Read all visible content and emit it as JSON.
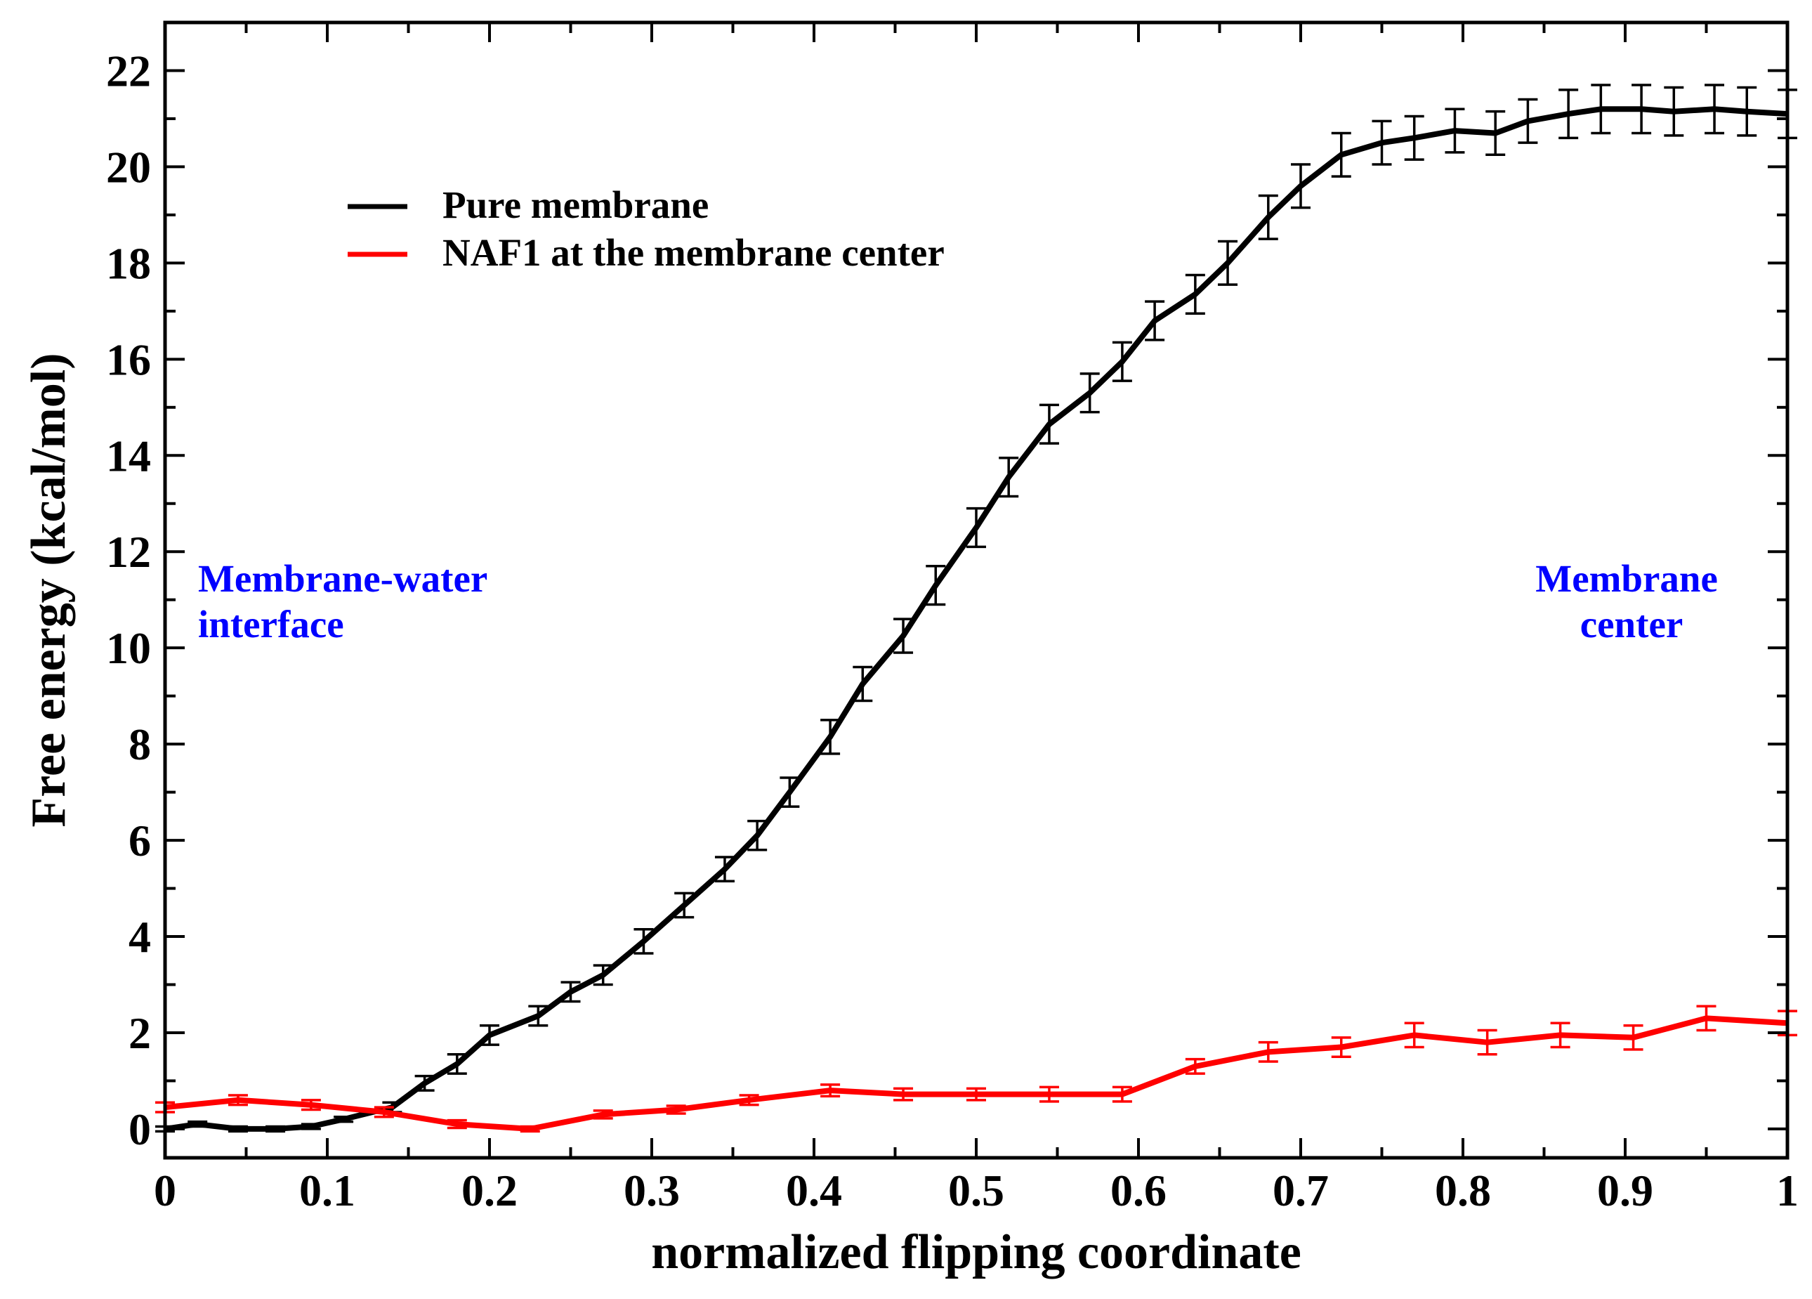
{
  "chart_data": {
    "type": "line",
    "title": "",
    "xlabel": "normalized flipping coordinate",
    "ylabel": "Free energy (kcal/mol)",
    "xlim": [
      0,
      1
    ],
    "ylim": [
      -0.6,
      23
    ],
    "xticks": [
      0,
      0.1,
      0.2,
      0.3,
      0.4,
      0.5,
      0.6,
      0.7,
      0.8,
      0.9,
      1
    ],
    "xtick_labels": [
      "0",
      "0.1",
      "0.2",
      "0.3",
      "0.4",
      "0.5",
      "0.6",
      "0.7",
      "0.8",
      "0.9",
      "1"
    ],
    "yticks": [
      0,
      2,
      4,
      6,
      8,
      10,
      12,
      14,
      16,
      18,
      20,
      22
    ],
    "ytick_labels": [
      "0",
      "2",
      "4",
      "6",
      "8",
      "10",
      "12",
      "14",
      "16",
      "18",
      "20",
      "22"
    ],
    "grid": false,
    "legend_position": "top-left",
    "series": [
      {
        "name": "Pure membrane",
        "color": "#000000",
        "x": [
          0,
          0.02,
          0.045,
          0.068,
          0.09,
          0.11,
          0.14,
          0.16,
          0.18,
          0.2,
          0.23,
          0.25,
          0.27,
          0.295,
          0.32,
          0.345,
          0.365,
          0.385,
          0.41,
          0.43,
          0.455,
          0.475,
          0.5,
          0.52,
          0.545,
          0.57,
          0.59,
          0.61,
          0.635,
          0.655,
          0.68,
          0.7,
          0.725,
          0.75,
          0.77,
          0.795,
          0.82,
          0.84,
          0.865,
          0.885,
          0.91,
          0.93,
          0.955,
          0.975,
          1.0
        ],
        "y": [
          0.0,
          0.1,
          0.0,
          0.0,
          0.05,
          0.2,
          0.45,
          0.95,
          1.35,
          1.95,
          2.35,
          2.85,
          3.2,
          3.9,
          4.65,
          5.4,
          6.1,
          7.0,
          8.15,
          9.25,
          10.25,
          11.3,
          12.5,
          13.55,
          14.65,
          15.3,
          15.95,
          16.8,
          17.35,
          18.0,
          18.95,
          19.6,
          20.25,
          20.5,
          20.6,
          20.75,
          20.7,
          20.95,
          21.1,
          21.2,
          21.2,
          21.15,
          21.2,
          21.15,
          21.1
        ],
        "err": [
          0.05,
          0.05,
          0.05,
          0.05,
          0.05,
          0.05,
          0.1,
          0.15,
          0.2,
          0.2,
          0.2,
          0.2,
          0.2,
          0.25,
          0.25,
          0.25,
          0.3,
          0.3,
          0.35,
          0.35,
          0.35,
          0.4,
          0.4,
          0.4,
          0.4,
          0.4,
          0.4,
          0.4,
          0.4,
          0.45,
          0.45,
          0.45,
          0.45,
          0.45,
          0.45,
          0.45,
          0.45,
          0.45,
          0.5,
          0.5,
          0.5,
          0.5,
          0.5,
          0.5,
          0.5
        ]
      },
      {
        "name": "NAF1 at the membrane center",
        "color": "#ff0000",
        "x": [
          0,
          0.045,
          0.09,
          0.135,
          0.18,
          0.225,
          0.27,
          0.315,
          0.36,
          0.41,
          0.455,
          0.5,
          0.545,
          0.59,
          0.635,
          0.68,
          0.725,
          0.77,
          0.815,
          0.86,
          0.905,
          0.95,
          1.0
        ],
        "y": [
          0.45,
          0.6,
          0.5,
          0.35,
          0.1,
          0.0,
          0.3,
          0.4,
          0.6,
          0.8,
          0.72,
          0.72,
          0.72,
          0.72,
          1.3,
          1.6,
          1.7,
          1.95,
          1.8,
          1.95,
          1.9,
          2.3,
          2.2
        ],
        "err": [
          0.1,
          0.1,
          0.1,
          0.1,
          0.08,
          0.05,
          0.08,
          0.08,
          0.1,
          0.12,
          0.12,
          0.12,
          0.15,
          0.15,
          0.15,
          0.2,
          0.2,
          0.25,
          0.25,
          0.25,
          0.25,
          0.25,
          0.25
        ]
      }
    ],
    "annotations": [
      {
        "text_lines": [
          "Membrane-water",
          "interface"
        ],
        "color": "#0000ff",
        "anchor": "left"
      },
      {
        "text_lines": [
          "Membrane",
          "center"
        ],
        "color": "#0000ff",
        "anchor": "right"
      }
    ]
  }
}
